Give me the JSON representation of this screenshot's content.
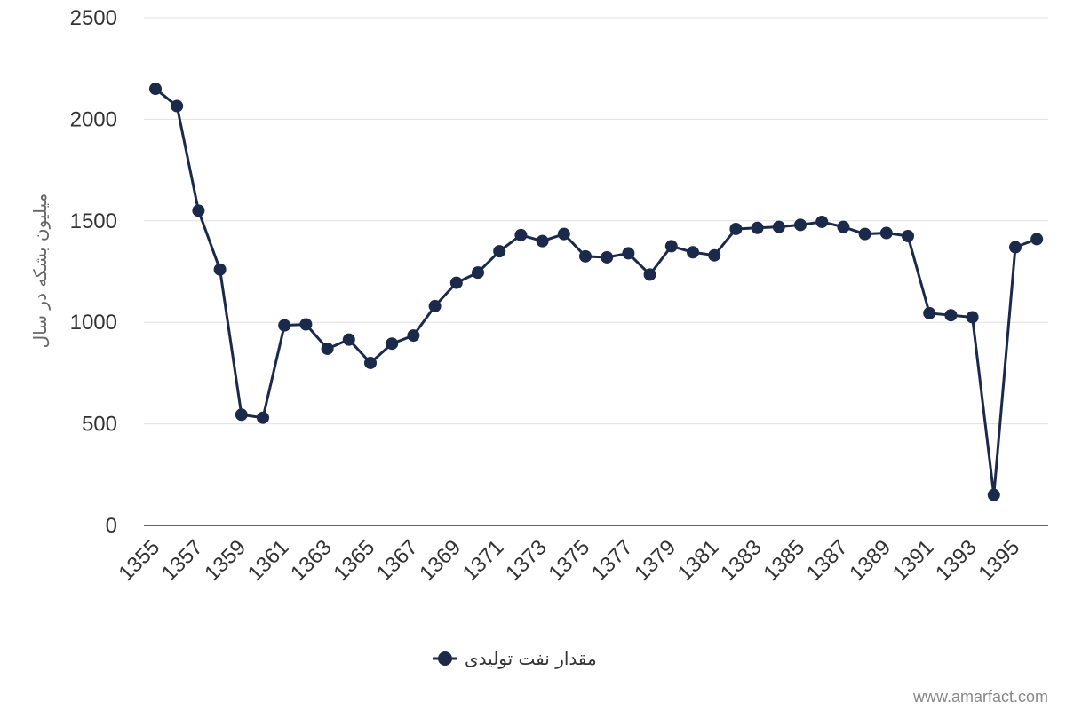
{
  "chart_data": {
    "type": "line",
    "x": [
      1355,
      1356,
      1357,
      1358,
      1359,
      1360,
      1361,
      1362,
      1363,
      1364,
      1365,
      1366,
      1367,
      1368,
      1369,
      1370,
      1371,
      1372,
      1373,
      1374,
      1375,
      1376,
      1377,
      1378,
      1379,
      1380,
      1381,
      1382,
      1383,
      1384,
      1385,
      1386,
      1387,
      1388,
      1389,
      1390,
      1391,
      1392,
      1393,
      1394,
      1395,
      1396
    ],
    "x_tick_labels": [
      "1355",
      "1357",
      "1359",
      "1361",
      "1363",
      "1365",
      "1367",
      "1369",
      "1371",
      "1373",
      "1375",
      "1377",
      "1379",
      "1381",
      "1383",
      "1385",
      "1387",
      "1389",
      "1391",
      "1393",
      "1395"
    ],
    "series": [
      {
        "name": "مقدار نفت تولیدی",
        "color": "#1b2a4a",
        "values": [
          2150,
          2065,
          1550,
          1260,
          545,
          530,
          985,
          990,
          870,
          915,
          800,
          895,
          935,
          1080,
          1195,
          1245,
          1350,
          1430,
          1400,
          1435,
          1325,
          1320,
          1340,
          1235,
          1375,
          1345,
          1330,
          1460,
          1465,
          1470,
          1480,
          1495,
          1470,
          1435,
          1440,
          1425,
          1045,
          1035,
          1025,
          150,
          1370,
          1410
        ]
      }
    ],
    "ylabel": "میلیون بشکه در سال",
    "ylim": [
      0,
      2500
    ],
    "y_ticks": [
      0,
      500,
      1000,
      1500,
      2000,
      2500
    ],
    "grid": true,
    "legend_position": "bottom-center"
  },
  "watermark": "www.amarfact.com"
}
